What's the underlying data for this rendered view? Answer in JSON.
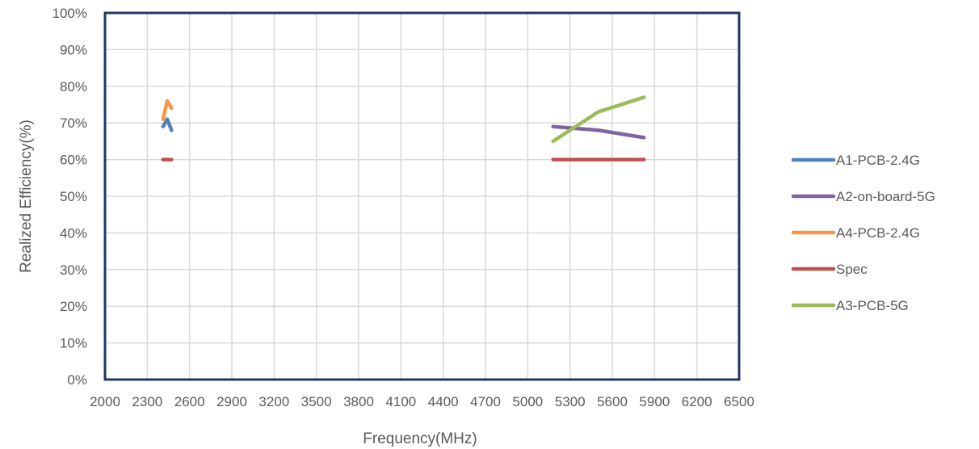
{
  "chart_data": {
    "type": "line",
    "xlabel": "Frequency(MHz)",
    "ylabel": "Realized Efficiency(%)",
    "xlim": [
      2000,
      6500
    ],
    "ylim": [
      0,
      100
    ],
    "x_ticks": [
      "2000",
      "2300",
      "2600",
      "2900",
      "3200",
      "3500",
      "3800",
      "4100",
      "4400",
      "4700",
      "5000",
      "5300",
      "5600",
      "5900",
      "6200",
      "6500"
    ],
    "y_ticks": [
      "0%",
      "10%",
      "20%",
      "30%",
      "40%",
      "50%",
      "60%",
      "70%",
      "80%",
      "90%",
      "100%"
    ],
    "grid": true,
    "legend_position": "right",
    "series": [
      {
        "name": "A1-PCB-2.4G",
        "color": "#4F81BD",
        "x": [
          2412,
          2442,
          2472
        ],
        "y": [
          69,
          71,
          68
        ]
      },
      {
        "name": "A2-on-board-5G",
        "color": "#8064A2",
        "x": [
          5180,
          5500,
          5825
        ],
        "y": [
          69,
          68,
          66
        ]
      },
      {
        "name": "A4-PCB-2.4G",
        "color": "#F79646",
        "x": [
          2412,
          2442,
          2472
        ],
        "y": [
          71,
          76,
          74
        ]
      },
      {
        "name": "Spec",
        "color": "#C0504D",
        "x": [
          2412,
          2442,
          2472
        ],
        "y": [
          60,
          60,
          60
        ],
        "x2": [
          5180,
          5500,
          5825
        ],
        "y2": [
          60,
          60,
          60
        ]
      },
      {
        "name": "A3-PCB-5G",
        "color": "#9BBB59",
        "x": [
          5180,
          5500,
          5825
        ],
        "y": [
          65,
          73,
          77
        ]
      }
    ]
  }
}
